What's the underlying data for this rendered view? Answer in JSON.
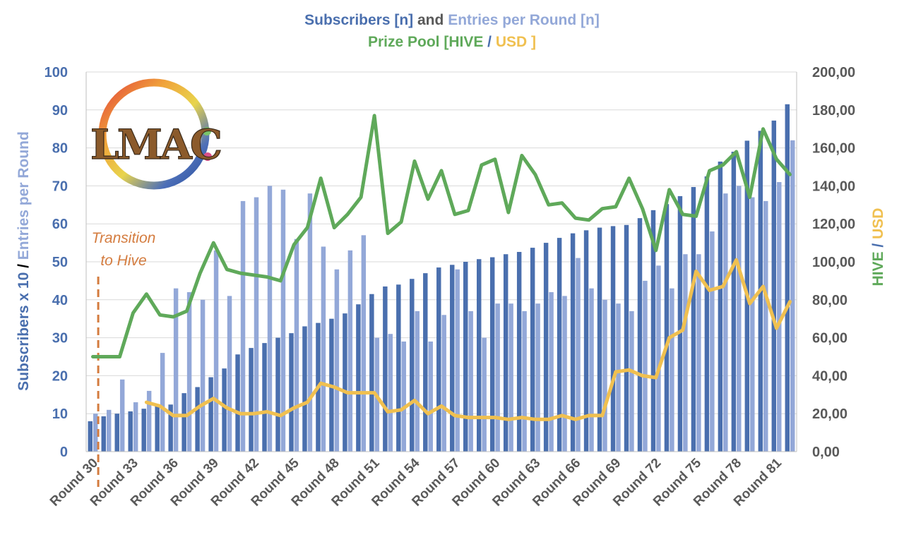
{
  "colors": {
    "subscribers": "#4a6fae",
    "entries": "#93a8d8",
    "hive": "#5fa95a",
    "usd": "#f0c050",
    "transition": "#d47c3f",
    "left_axis": "#4a6fae",
    "text_grey": "#595959",
    "grid": "#d9d9d9"
  },
  "title": {
    "line1": {
      "subscribers": "Subscribers [n]",
      "and": " and ",
      "entries": "Entries per Round [n]"
    },
    "line2": {
      "prefix": "Prize Pool [",
      "hive": "HIVE",
      "sep": " / ",
      "usd": "USD",
      "suffix": " ]"
    }
  },
  "left_axis_title": {
    "part1": "Subscribers x 10",
    "sep": " / ",
    "part2": "Entries per Round"
  },
  "right_axis_title": {
    "hive": "HIVE",
    "sep": " / ",
    "usd": "USD"
  },
  "annotation": {
    "line1": "Transition",
    "line2": "to Hive"
  },
  "logo_text": "LMAC",
  "chart_data": {
    "type": "bar",
    "x": [
      30,
      31,
      32,
      33,
      34,
      35,
      36,
      37,
      38,
      39,
      40,
      41,
      42,
      43,
      44,
      45,
      46,
      47,
      48,
      49,
      50,
      51,
      52,
      53,
      54,
      55,
      56,
      57,
      58,
      59,
      60,
      61,
      62,
      63,
      64,
      65,
      66,
      67,
      68,
      69,
      70,
      71,
      72,
      73,
      74,
      75,
      76,
      77,
      78,
      79,
      80,
      81,
      82
    ],
    "categories": [
      "Round 30",
      "Round 33",
      "Round 36",
      "Round 39",
      "Round 42",
      "Round 45",
      "Round 48",
      "Round 51",
      "Round 54",
      "Round 57",
      "Round 60",
      "Round 63",
      "Round 66",
      "Round 69",
      "Round 72",
      "Round 75",
      "Round 78",
      "Round 81"
    ],
    "series": [
      {
        "name": "Subscribers [n]",
        "type": "bar",
        "axis": "left",
        "values": [
          8,
          9.3,
          10,
          10.6,
          11.3,
          12,
          12.4,
          15.4,
          17,
          19.6,
          21.9,
          25.6,
          27.3,
          28.6,
          30,
          31.2,
          33,
          33.9,
          35,
          36.4,
          38.8,
          41.5,
          43.5,
          44,
          45.5,
          47,
          48.5,
          49.2,
          50,
          50.7,
          51.2,
          52,
          52.6,
          53.7,
          55,
          56.3,
          57.5,
          58.3,
          59,
          59.4,
          59.7,
          61.5,
          63.6,
          65.2,
          67.3,
          69.7,
          72.5,
          76.4,
          79,
          81.9,
          84.5,
          87.2,
          91.5
        ]
      },
      {
        "name": "Entries per Round [n]",
        "type": "bar",
        "axis": "left",
        "values": [
          10,
          11,
          19,
          13,
          16,
          26,
          43,
          42,
          40,
          53,
          41,
          66,
          67,
          70,
          69,
          56,
          68,
          54,
          48,
          53,
          57,
          30,
          31,
          29,
          37,
          29,
          36,
          48,
          37,
          30,
          39,
          39,
          37,
          39,
          42,
          41,
          51,
          43,
          40,
          39,
          37,
          45,
          49,
          43,
          52,
          52,
          58,
          68,
          70,
          67,
          66,
          71,
          82
        ]
      },
      {
        "name": "HIVE",
        "type": "line",
        "axis": "right",
        "values": [
          50,
          50,
          50,
          73,
          83,
          72,
          71,
          74,
          94,
          110,
          96,
          94,
          93,
          92,
          90,
          109,
          118,
          144,
          118,
          125,
          134,
          177,
          115,
          121,
          153,
          133,
          148,
          125,
          127,
          151,
          154,
          126,
          156,
          146,
          130,
          131,
          123,
          122,
          128,
          129,
          144,
          128,
          106,
          138,
          125,
          124,
          148,
          151,
          158,
          134,
          170,
          154,
          146
        ]
      },
      {
        "name": "USD",
        "type": "line",
        "axis": "right",
        "values": [
          null,
          null,
          null,
          null,
          26,
          24,
          19,
          19,
          24,
          28,
          23,
          20,
          20,
          21,
          19,
          23,
          26,
          36,
          34,
          31,
          31,
          31,
          21,
          22,
          27,
          20,
          24,
          19,
          18,
          18,
          18,
          17,
          18,
          17,
          17,
          19,
          17,
          19,
          19,
          42,
          43,
          40,
          39,
          60,
          64,
          95,
          85,
          87,
          101,
          78,
          87,
          65,
          79
        ]
      }
    ],
    "y_left": {
      "min": 0,
      "max": 100,
      "ticks": [
        "0",
        "10",
        "20",
        "30",
        "40",
        "50",
        "60",
        "70",
        "80",
        "90",
        "100"
      ]
    },
    "y_right": {
      "min": 0,
      "max": 200,
      "ticks": [
        "0,00",
        "20,00",
        "40,00",
        "60,00",
        "80,00",
        "100,00",
        "120,00",
        "140,00",
        "160,00",
        "180,00",
        "200,00"
      ]
    },
    "grid": "horizontal",
    "legend": "none",
    "transition_round": 30.4
  }
}
